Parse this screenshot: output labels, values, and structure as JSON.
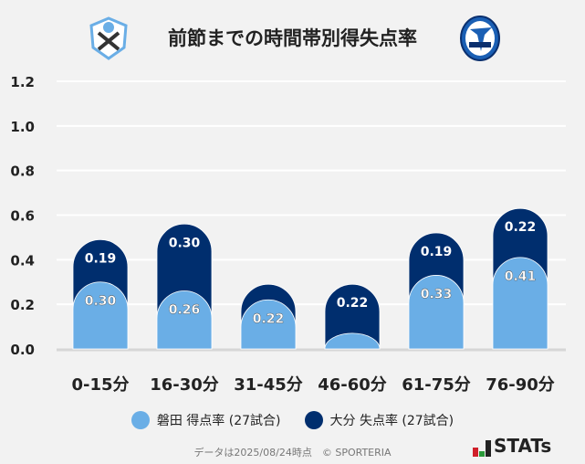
{
  "title": "前節までの時間帯別得失点率",
  "logos": {
    "left": "磐田 crest",
    "right": "TRINITA"
  },
  "chart_data": {
    "type": "bar",
    "stacked": true,
    "title": "前節までの時間帯別得失点率",
    "categories": [
      "0-15分",
      "16-30分",
      "31-45分",
      "46-60分",
      "61-75分",
      "76-90分"
    ],
    "series": [
      {
        "name": "磐田 得点率 (27試合)",
        "color": "#6aaee6",
        "values": [
          0.3,
          0.26,
          0.22,
          0.07,
          0.33,
          0.41
        ],
        "labels": [
          "0.30",
          "0.26",
          "0.22",
          "",
          "0.33",
          "0.41"
        ]
      },
      {
        "name": "大分 失点率 (27試合)",
        "color": "#002e6e",
        "values": [
          0.19,
          0.3,
          0.07,
          0.22,
          0.19,
          0.22
        ],
        "labels": [
          "0.19",
          "0.30",
          "",
          "0.22",
          "0.19",
          "0.22"
        ]
      }
    ],
    "yticks": [
      "0.0",
      "0.2",
      "0.4",
      "0.6",
      "0.8",
      "1.0",
      "1.2"
    ],
    "ylim": [
      0,
      1.2
    ],
    "grid": true,
    "legend": "bottom"
  },
  "footer": "データは2025/08/24時点　© SPORTERIA",
  "brand": "STATs"
}
